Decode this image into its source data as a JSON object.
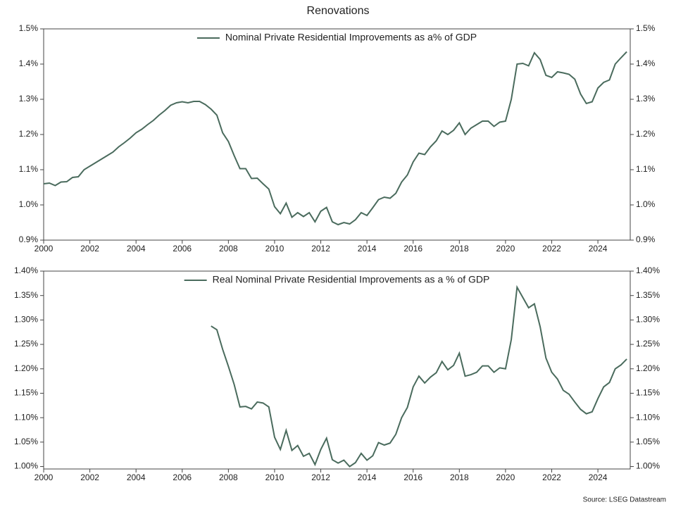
{
  "title": "Renovations",
  "source": "Source: LSEG Datastream",
  "chart_data": [
    {
      "type": "line",
      "legend": "upper center",
      "x": [
        2000,
        2000.25,
        2000.5,
        2000.75,
        2001,
        2001.25,
        2001.5,
        2001.75,
        2002,
        2002.25,
        2002.5,
        2002.75,
        2003,
        2003.25,
        2003.5,
        2003.75,
        2004,
        2004.25,
        2004.5,
        2004.75,
        2005,
        2005.25,
        2005.5,
        2005.75,
        2006,
        2006.25,
        2006.5,
        2006.75,
        2007,
        2007.25,
        2007.5,
        2007.75,
        2008,
        2008.25,
        2008.5,
        2008.75,
        2009,
        2009.25,
        2009.5,
        2009.75,
        2010,
        2010.25,
        2010.5,
        2010.75,
        2011,
        2011.25,
        2011.5,
        2011.75,
        2012,
        2012.25,
        2012.5,
        2012.75,
        2013,
        2013.25,
        2013.5,
        2013.75,
        2014,
        2014.25,
        2014.5,
        2014.75,
        2015,
        2015.25,
        2015.5,
        2015.75,
        2016,
        2016.25,
        2016.5,
        2016.75,
        2017,
        2017.25,
        2017.5,
        2017.75,
        2018,
        2018.25,
        2018.5,
        2018.75,
        2019,
        2019.25,
        2019.5,
        2019.75,
        2020,
        2020.25,
        2020.5,
        2020.75,
        2021,
        2021.25,
        2021.5,
        2021.75,
        2022,
        2022.25,
        2022.5,
        2022.75,
        2023,
        2023.25,
        2023.5,
        2023.75,
        2024,
        2024.25,
        2024.5,
        2024.75,
        2025,
        2025.25
      ],
      "series": [
        {
          "name": "Nominal Private Residential Improvements as a% of GDP",
          "color": "#4a6b5d",
          "values": [
            1.06,
            1.062,
            1.055,
            1.065,
            1.066,
            1.078,
            1.08,
            1.1,
            1.11,
            1.12,
            1.13,
            1.14,
            1.15,
            1.165,
            1.177,
            1.19,
            1.205,
            1.215,
            1.228,
            1.24,
            1.255,
            1.268,
            1.283,
            1.29,
            1.293,
            1.29,
            1.294,
            1.294,
            1.285,
            1.272,
            1.255,
            1.205,
            1.18,
            1.14,
            1.103,
            1.103,
            1.075,
            1.076,
            1.06,
            1.045,
            0.995,
            0.975,
            1.005,
            0.965,
            0.978,
            0.967,
            0.978,
            0.952,
            0.982,
            0.993,
            0.952,
            0.944,
            0.95,
            0.946,
            0.958,
            0.978,
            0.97,
            0.992,
            1.015,
            1.022,
            1.019,
            1.033,
            1.065,
            1.085,
            1.122,
            1.147,
            1.143,
            1.165,
            1.182,
            1.21,
            1.2,
            1.212,
            1.233,
            1.2,
            1.218,
            1.228,
            1.238,
            1.238,
            1.223,
            1.235,
            1.238,
            1.3,
            1.4,
            1.402,
            1.395,
            1.432,
            1.413,
            1.368,
            1.362,
            1.378,
            1.375,
            1.371,
            1.357,
            1.315,
            1.288,
            1.293,
            1.332,
            1.348,
            1.355,
            1.4,
            1.418,
            1.435
          ]
        }
      ],
      "xlim": [
        2000,
        2025.4
      ],
      "xticks": [
        2000,
        2002,
        2004,
        2006,
        2008,
        2010,
        2012,
        2014,
        2016,
        2018,
        2020,
        2022,
        2024
      ],
      "ylim": [
        0.9,
        1.5
      ],
      "yticks": [
        {
          "value": 0.9,
          "label": "0.9%"
        },
        {
          "value": 1.0,
          "label": "1.0%"
        },
        {
          "value": 1.1,
          "label": "1.1%"
        },
        {
          "value": 1.2,
          "label": "1.2%"
        },
        {
          "value": 1.3,
          "label": "1.3%"
        },
        {
          "value": 1.4,
          "label": "1.4%"
        },
        {
          "value": 1.5,
          "label": "1.5%"
        }
      ]
    },
    {
      "type": "line",
      "legend": "upper center",
      "x": [
        2000,
        2000.25,
        2000.5,
        2000.75,
        2001,
        2001.25,
        2001.5,
        2001.75,
        2002,
        2002.25,
        2002.5,
        2002.75,
        2003,
        2003.25,
        2003.5,
        2003.75,
        2004,
        2004.25,
        2004.5,
        2004.75,
        2005,
        2005.25,
        2005.5,
        2005.75,
        2006,
        2006.25,
        2006.5,
        2006.75,
        2007,
        2007.25,
        2007.5,
        2007.75,
        2008,
        2008.25,
        2008.5,
        2008.75,
        2009,
        2009.25,
        2009.5,
        2009.75,
        2010,
        2010.25,
        2010.5,
        2010.75,
        2011,
        2011.25,
        2011.5,
        2011.75,
        2012,
        2012.25,
        2012.5,
        2012.75,
        2013,
        2013.25,
        2013.5,
        2013.75,
        2014,
        2014.25,
        2014.5,
        2014.75,
        2015,
        2015.25,
        2015.5,
        2015.75,
        2016,
        2016.25,
        2016.5,
        2016.75,
        2017,
        2017.25,
        2017.5,
        2017.75,
        2018,
        2018.25,
        2018.5,
        2018.75,
        2019,
        2019.25,
        2019.5,
        2019.75,
        2020,
        2020.25,
        2020.5,
        2020.75,
        2021,
        2021.25,
        2021.5,
        2021.75,
        2022,
        2022.25,
        2022.5,
        2022.75,
        2023,
        2023.25,
        2023.5,
        2023.75,
        2024,
        2024.25,
        2024.5,
        2024.75,
        2025,
        2025.25
      ],
      "series": [
        {
          "name": "Real Nominal Private Residential Improvements as a % of GDP",
          "color": "#4a6b5d",
          "values": [
            null,
            null,
            null,
            null,
            null,
            null,
            null,
            null,
            null,
            null,
            null,
            null,
            null,
            null,
            null,
            null,
            null,
            null,
            null,
            null,
            null,
            null,
            null,
            null,
            null,
            null,
            null,
            null,
            null,
            1.2875,
            1.28,
            1.24,
            1.205,
            1.168,
            1.122,
            1.123,
            1.118,
            1.132,
            1.13,
            1.122,
            1.06,
            1.035,
            1.074,
            1.033,
            1.043,
            1.021,
            1.027,
            1.004,
            1.035,
            1.058,
            1.014,
            1.007,
            1.013,
            1.0,
            1.008,
            1.027,
            1.013,
            1.022,
            1.049,
            1.044,
            1.048,
            1.066,
            1.1,
            1.121,
            1.163,
            1.185,
            1.171,
            1.183,
            1.192,
            1.215,
            1.198,
            1.207,
            1.232,
            1.185,
            1.188,
            1.193,
            1.206,
            1.206,
            1.193,
            1.202,
            1.2,
            1.26,
            1.367,
            1.346,
            1.325,
            1.333,
            1.286,
            1.222,
            1.193,
            1.179,
            1.156,
            1.148,
            1.132,
            1.117,
            1.108,
            1.112,
            1.139,
            1.163,
            1.172,
            1.2,
            1.208,
            1.22
          ]
        }
      ],
      "xlim": [
        2000,
        2025.4
      ],
      "xticks": [
        2000,
        2002,
        2004,
        2006,
        2008,
        2010,
        2012,
        2014,
        2016,
        2018,
        2020,
        2022,
        2024
      ],
      "ylim": [
        0.995,
        1.4
      ],
      "yticks": [
        {
          "value": 1.0,
          "label": "1.00%"
        },
        {
          "value": 1.05,
          "label": "1.05%"
        },
        {
          "value": 1.1,
          "label": "1.10%"
        },
        {
          "value": 1.15,
          "label": "1.15%"
        },
        {
          "value": 1.2,
          "label": "1.20%"
        },
        {
          "value": 1.25,
          "label": "1.25%"
        },
        {
          "value": 1.3,
          "label": "1.30%"
        },
        {
          "value": 1.35,
          "label": "1.35%"
        },
        {
          "value": 1.4,
          "label": "1.40%"
        }
      ]
    }
  ]
}
